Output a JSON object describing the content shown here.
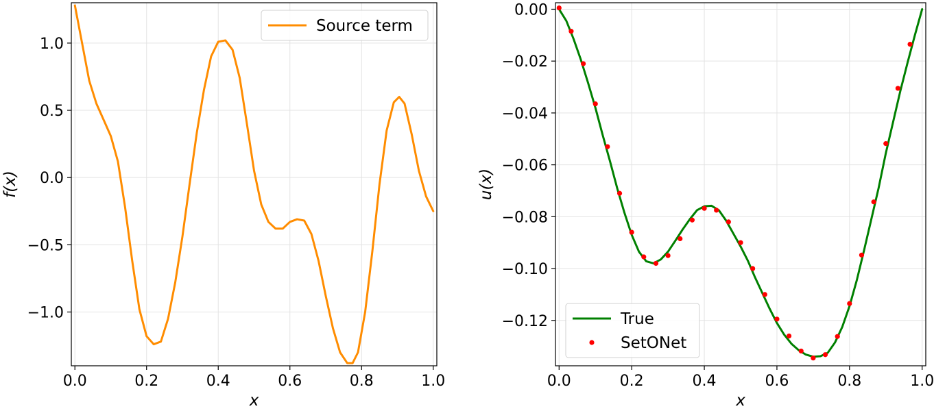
{
  "chart_data": [
    {
      "type": "line",
      "title": "",
      "xlabel": "x",
      "ylabel": "f(x)",
      "xlim": [
        -0.01,
        1.01
      ],
      "ylim": [
        -1.4,
        1.3
      ],
      "xticks": [
        0.0,
        0.2,
        0.4,
        0.6,
        0.8,
        1.0
      ],
      "xtick_labels": [
        "0.0",
        "0.2",
        "0.4",
        "0.6",
        "0.8",
        "1.0"
      ],
      "yticks": [
        -1.0,
        -0.5,
        0.0,
        0.5,
        1.0
      ],
      "ytick_labels": [
        "−1.0",
        "−0.5",
        "0.0",
        "0.5",
        "1.0"
      ],
      "grid": true,
      "legend": "top-right",
      "series": [
        {
          "name": "Source term",
          "color": "#ff8c00",
          "style": "line",
          "x": [
            0.0,
            0.02,
            0.04,
            0.06,
            0.08,
            0.1,
            0.12,
            0.14,
            0.16,
            0.18,
            0.2,
            0.22,
            0.24,
            0.26,
            0.28,
            0.3,
            0.32,
            0.34,
            0.36,
            0.38,
            0.4,
            0.42,
            0.44,
            0.46,
            0.48,
            0.5,
            0.52,
            0.54,
            0.56,
            0.58,
            0.6,
            0.62,
            0.64,
            0.66,
            0.68,
            0.7,
            0.72,
            0.74,
            0.76,
            0.775,
            0.79,
            0.81,
            0.83,
            0.85,
            0.87,
            0.89,
            0.905,
            0.92,
            0.94,
            0.96,
            0.98,
            1.0
          ],
          "y": [
            1.28,
            1.0,
            0.72,
            0.55,
            0.43,
            0.31,
            0.12,
            -0.22,
            -0.62,
            -0.98,
            -1.18,
            -1.24,
            -1.22,
            -1.05,
            -0.78,
            -0.44,
            -0.05,
            0.33,
            0.65,
            0.9,
            1.01,
            1.02,
            0.95,
            0.74,
            0.4,
            0.05,
            -0.2,
            -0.33,
            -0.38,
            -0.38,
            -0.33,
            -0.31,
            -0.32,
            -0.42,
            -0.62,
            -0.88,
            -1.12,
            -1.3,
            -1.38,
            -1.38,
            -1.3,
            -1.0,
            -0.55,
            -0.05,
            0.35,
            0.56,
            0.6,
            0.55,
            0.32,
            0.05,
            -0.14,
            -0.25
          ]
        }
      ]
    },
    {
      "type": "line",
      "title": "",
      "xlabel": "x",
      "ylabel": "u(x)",
      "xlim": [
        -0.01,
        1.01
      ],
      "ylim": [
        -0.1375,
        0.0025
      ],
      "xticks": [
        0.0,
        0.2,
        0.4,
        0.6,
        0.8,
        1.0
      ],
      "xtick_labels": [
        "0.0",
        "0.2",
        "0.4",
        "0.6",
        "0.8",
        "1.0"
      ],
      "yticks": [
        0.0,
        -0.02,
        -0.04,
        -0.06,
        -0.08,
        -0.1,
        -0.12
      ],
      "ytick_labels": [
        "0.00",
        "−0.02",
        "−0.04",
        "−0.06",
        "−0.08",
        "−0.10",
        "−0.12"
      ],
      "grid": true,
      "legend": "bottom-left",
      "series": [
        {
          "name": "True",
          "color": "#008000",
          "style": "line",
          "x": [
            0.0,
            0.02,
            0.04,
            0.06,
            0.08,
            0.1,
            0.12,
            0.14,
            0.16,
            0.18,
            0.2,
            0.22,
            0.24,
            0.26,
            0.28,
            0.3,
            0.32,
            0.34,
            0.36,
            0.38,
            0.4,
            0.42,
            0.44,
            0.46,
            0.48,
            0.5,
            0.52,
            0.54,
            0.56,
            0.58,
            0.6,
            0.62,
            0.64,
            0.66,
            0.68,
            0.7,
            0.72,
            0.74,
            0.76,
            0.78,
            0.8,
            0.82,
            0.84,
            0.86,
            0.88,
            0.9,
            0.92,
            0.94,
            0.96,
            0.98,
            1.0
          ],
          "y": [
            0.0,
            -0.0045,
            -0.0115,
            -0.0195,
            -0.0285,
            -0.038,
            -0.0485,
            -0.0585,
            -0.069,
            -0.0785,
            -0.087,
            -0.0935,
            -0.0972,
            -0.098,
            -0.0965,
            -0.0935,
            -0.0893,
            -0.085,
            -0.081,
            -0.0775,
            -0.076,
            -0.0758,
            -0.0775,
            -0.0815,
            -0.0865,
            -0.0915,
            -0.097,
            -0.1035,
            -0.1095,
            -0.1155,
            -0.121,
            -0.1255,
            -0.129,
            -0.1315,
            -0.1332,
            -0.134,
            -0.1338,
            -0.1325,
            -0.1285,
            -0.1225,
            -0.1145,
            -0.1045,
            -0.093,
            -0.081,
            -0.069,
            -0.0555,
            -0.0435,
            -0.0315,
            -0.0205,
            -0.01,
            0.0
          ]
        },
        {
          "name": "SetONet",
          "color": "#ff0000",
          "style": "points",
          "x": [
            0.0,
            0.0333,
            0.0667,
            0.1,
            0.1333,
            0.1667,
            0.2,
            0.2333,
            0.2667,
            0.3,
            0.3333,
            0.3667,
            0.4,
            0.4333,
            0.4667,
            0.5,
            0.5333,
            0.5667,
            0.6,
            0.6333,
            0.6667,
            0.7,
            0.7333,
            0.7667,
            0.8,
            0.8333,
            0.8667,
            0.9,
            0.9333,
            0.9667
          ],
          "y": [
            0.0005,
            -0.0085,
            -0.021,
            -0.0365,
            -0.053,
            -0.071,
            -0.086,
            -0.0955,
            -0.098,
            -0.095,
            -0.0885,
            -0.0813,
            -0.0768,
            -0.0775,
            -0.082,
            -0.09,
            -0.1,
            -0.11,
            -0.1195,
            -0.126,
            -0.1318,
            -0.1345,
            -0.1332,
            -0.1262,
            -0.1135,
            -0.0948,
            -0.0743,
            -0.0518,
            -0.0305,
            -0.0135
          ]
        }
      ]
    }
  ]
}
